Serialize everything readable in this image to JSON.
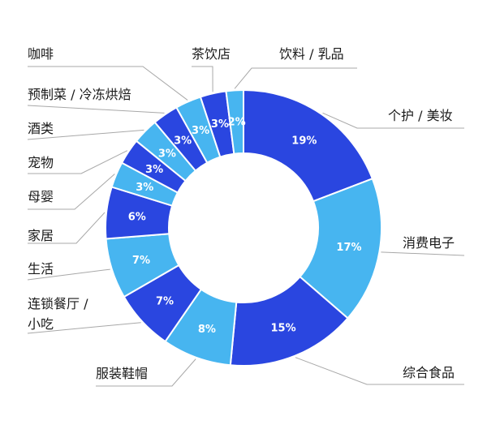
{
  "chart_data": {
    "type": "pie",
    "variant": "donut",
    "categories": [
      "个护 / 美妆",
      "消费电子",
      "综合食品",
      "服装鞋帽",
      "连锁餐厅 / 小吃",
      "生活",
      "家居",
      "母婴",
      "宠物",
      "酒类",
      "预制菜 / 冷冻烘焙",
      "咖啡",
      "茶饮店",
      "饮料 / 乳品"
    ],
    "values": [
      19,
      17,
      15,
      8,
      7,
      7,
      6,
      3,
      3,
      3,
      3,
      3,
      3,
      2
    ],
    "value_labels": [
      "19%",
      "17%",
      "15%",
      "8%",
      "7%",
      "7%",
      "6%",
      "3%",
      "3%",
      "3%",
      "3%",
      "3%",
      "3%",
      "2%"
    ],
    "colors": [
      "#2a46e0",
      "#47b5f0",
      "#2a46e0",
      "#47b5f0",
      "#2a46e0",
      "#47b5f0",
      "#2a46e0",
      "#47b5f0",
      "#2a46e0",
      "#47b5f0",
      "#2a46e0",
      "#47b5f0",
      "#2a46e0",
      "#47b5f0"
    ],
    "unit": "%",
    "start_angle": "top",
    "direction": "clockwise",
    "legend": "none (leader-line labels)"
  }
}
